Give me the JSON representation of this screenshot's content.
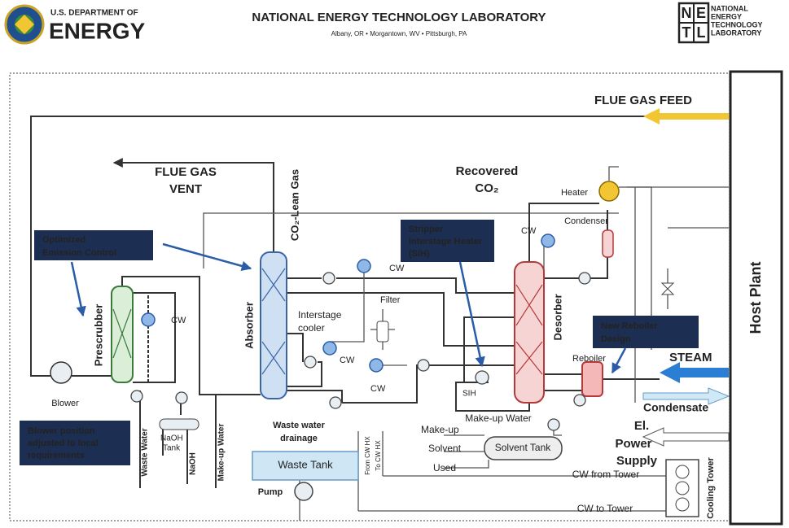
{
  "header": {
    "doe_top": "U.S. DEPARTMENT OF",
    "doe_main": "ENERGY",
    "lab_name": "NATIONAL ENERGY TECHNOLOGY LABORATORY",
    "lab_locations": "Albany, OR • Morgantown, WV • Pittsburgh, PA",
    "netl_letters": [
      "N",
      "E",
      "T",
      "L"
    ],
    "netl_words": [
      "NATIONAL",
      "ENERGY",
      "TECHNOLOGY",
      "LABORATORY"
    ]
  },
  "diagram": {
    "flue_gas_feed": "FLUE GAS FEED",
    "flue_gas_vent": [
      "FLUE GAS",
      "VENT"
    ],
    "co2_lean_gas": "CO₂-Lean Gas",
    "recovered_co2": [
      "Recovered",
      "CO₂"
    ],
    "heater": "Heater",
    "condenser": "Condenser",
    "cw": [
      "CW",
      "CW",
      "CW",
      "CW",
      "CW"
    ],
    "callouts": [
      [
        "Optimized",
        "Emission Control"
      ],
      [
        "Stripper",
        "Interstage Heater",
        "(SIH)"
      ],
      [
        "New Reboiler",
        "Design"
      ],
      [
        "Blower position",
        "adjusted to local",
        "requirements"
      ]
    ],
    "prescrubber": "Prescrubber",
    "absorber": "Absorber",
    "desorber": "Desorber",
    "interstage_cooler": [
      "Interstage",
      "cooler"
    ],
    "filter": "Filter",
    "sih": "SIH",
    "reboiler": "Reboiler",
    "steam": "STEAM",
    "condensate": "Condensate",
    "power_supply": [
      "El.",
      "Power",
      "Supply"
    ],
    "desorber_makeup_water": "Make-up Water",
    "solvent_makeup": [
      "Make-up",
      "Solvent"
    ],
    "solvent_tank": "Solvent Tank",
    "used": "Used",
    "cw_from_tower": "CW from Tower",
    "cw_to_tower": "CW to Tower",
    "cooling_tower": "Cooling Tower",
    "host_plant": "Host Plant",
    "blower": "Blower",
    "waste_water": "Waste Water",
    "naoh_tank": [
      "NaOH",
      "Tank"
    ],
    "naoh": "NaOH",
    "makeup_water": "Make-up Water",
    "waste_water_drainage": [
      "Waste water",
      "drainage"
    ],
    "waste_tank": "Waste Tank",
    "pump": "Pump",
    "from_cw_hx": "From CW HX",
    "to_cw_hx": "To CW HX"
  }
}
